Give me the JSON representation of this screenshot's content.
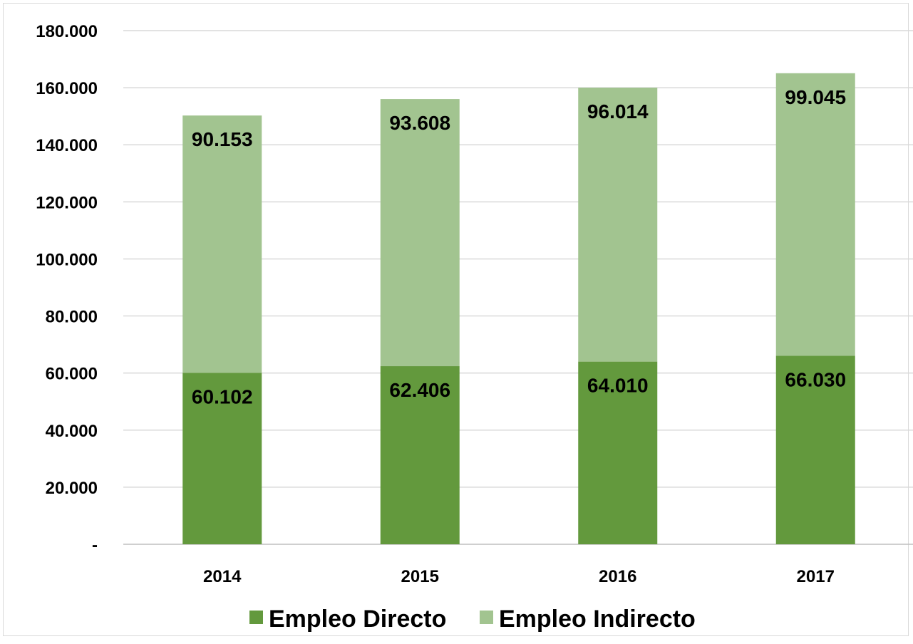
{
  "chart_data": {
    "type": "bar",
    "stacked": true,
    "categories": [
      "2014",
      "2015",
      "2016",
      "2017"
    ],
    "series": [
      {
        "name": "Empleo Directo",
        "values": [
          60102,
          62406,
          64010,
          66030
        ],
        "labels": [
          "60.102",
          "62.406",
          "64.010",
          "66.030"
        ],
        "color": "#63993d"
      },
      {
        "name": "Empleo Indirecto",
        "values": [
          90153,
          93608,
          96014,
          99045
        ],
        "labels": [
          "90.153",
          "93.608",
          "96.014",
          "99.045"
        ],
        "color": "#a2c490"
      }
    ],
    "ylim": [
      0,
      180000
    ],
    "yticks": [
      0,
      20000,
      40000,
      60000,
      80000,
      100000,
      120000,
      140000,
      160000,
      180000
    ],
    "ytick_labels": [
      "-",
      "20.000",
      "40.000",
      "60.000",
      "80.000",
      "100.000",
      "120.000",
      "140.000",
      "160.000",
      "180.000"
    ],
    "grid": true,
    "legend_position": "bottom",
    "title": "",
    "xlabel": "",
    "ylabel": ""
  }
}
